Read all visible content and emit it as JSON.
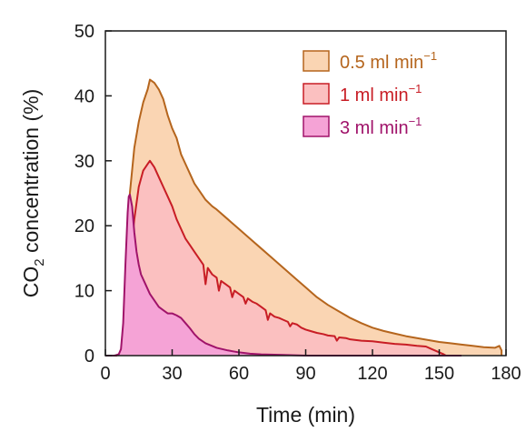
{
  "chart_data": {
    "type": "area",
    "xlabel": "Time (min)",
    "ylabel": {
      "prefix": "CO",
      "subscript": "2",
      "suffix": " concentration (%)"
    },
    "xlim": [
      0,
      180
    ],
    "ylim": [
      0,
      50
    ],
    "xticks": [
      "0",
      "30",
      "60",
      "90",
      "120",
      "150",
      "180"
    ],
    "yticks": [
      "0",
      "10",
      "20",
      "30",
      "40",
      "50"
    ],
    "grid": false,
    "legend_position": "top-right",
    "series": [
      {
        "name": "0.5 ml min",
        "name_superscript": "−1",
        "line_color": "#b5651d",
        "fill_color": "#fad5b3",
        "points": [
          [
            0,
            0
          ],
          [
            5,
            0
          ],
          [
            7,
            0.5
          ],
          [
            9,
            8
          ],
          [
            11,
            25
          ],
          [
            13,
            32
          ],
          [
            15,
            36
          ],
          [
            17,
            39
          ],
          [
            19,
            41
          ],
          [
            20,
            42.5
          ],
          [
            22,
            42
          ],
          [
            24,
            41
          ],
          [
            26,
            39.5
          ],
          [
            28,
            37
          ],
          [
            30,
            35
          ],
          [
            32,
            33.5
          ],
          [
            34,
            31
          ],
          [
            36,
            29.5
          ],
          [
            38,
            28
          ],
          [
            40,
            26.5
          ],
          [
            42,
            25.5
          ],
          [
            45,
            24
          ],
          [
            48,
            23
          ],
          [
            50,
            22.5
          ],
          [
            55,
            21
          ],
          [
            60,
            19.5
          ],
          [
            65,
            18
          ],
          [
            70,
            16.5
          ],
          [
            75,
            15
          ],
          [
            80,
            13.5
          ],
          [
            85,
            12
          ],
          [
            90,
            10.5
          ],
          [
            95,
            9
          ],
          [
            100,
            7.8
          ],
          [
            105,
            6.8
          ],
          [
            110,
            5.8
          ],
          [
            115,
            5
          ],
          [
            120,
            4.3
          ],
          [
            125,
            3.8
          ],
          [
            130,
            3.4
          ],
          [
            135,
            3
          ],
          [
            140,
            2.7
          ],
          [
            145,
            2.4
          ],
          [
            150,
            2.1
          ],
          [
            155,
            1.9
          ],
          [
            160,
            1.7
          ],
          [
            165,
            1.5
          ],
          [
            170,
            1.3
          ],
          [
            175,
            1.2
          ],
          [
            177,
            1.5
          ],
          [
            178,
            0.8
          ],
          [
            178,
            0
          ]
        ]
      },
      {
        "name": "1 ml min",
        "name_superscript": "−1",
        "line_color": "#c81d25",
        "fill_color": "#fbc0c0",
        "points": [
          [
            0,
            0
          ],
          [
            5,
            0
          ],
          [
            7,
            0.3
          ],
          [
            9,
            5
          ],
          [
            11,
            14
          ],
          [
            13,
            21
          ],
          [
            15,
            26
          ],
          [
            17,
            28.5
          ],
          [
            19,
            29.5
          ],
          [
            20,
            30
          ],
          [
            22,
            29
          ],
          [
            24,
            27.5
          ],
          [
            26,
            26
          ],
          [
            28,
            24.5
          ],
          [
            30,
            23
          ],
          [
            32,
            21
          ],
          [
            34,
            19.5
          ],
          [
            36,
            18
          ],
          [
            38,
            17
          ],
          [
            40,
            16
          ],
          [
            42,
            15
          ],
          [
            44,
            14
          ],
          [
            45,
            11
          ],
          [
            46,
            13.5
          ],
          [
            48,
            12.5
          ],
          [
            50,
            12
          ],
          [
            51,
            10
          ],
          [
            52,
            11.5
          ],
          [
            54,
            11
          ],
          [
            56,
            10.5
          ],
          [
            57,
            9
          ],
          [
            58,
            10
          ],
          [
            60,
            9.5
          ],
          [
            62,
            9
          ],
          [
            63,
            8
          ],
          [
            64,
            8.8
          ],
          [
            66,
            8.3
          ],
          [
            68,
            8
          ],
          [
            70,
            7.5
          ],
          [
            72,
            7
          ],
          [
            73,
            5.5
          ],
          [
            74,
            6.5
          ],
          [
            76,
            6
          ],
          [
            78,
            5.8
          ],
          [
            80,
            5.5
          ],
          [
            82,
            5.2
          ],
          [
            83,
            4.5
          ],
          [
            84,
            5
          ],
          [
            86,
            4.8
          ],
          [
            88,
            4.3
          ],
          [
            90,
            4
          ],
          [
            92,
            3.8
          ],
          [
            95,
            3.5
          ],
          [
            98,
            3.3
          ],
          [
            100,
            3.1
          ],
          [
            103,
            3
          ],
          [
            104,
            2.3
          ],
          [
            105,
            2.8
          ],
          [
            108,
            2.7
          ],
          [
            110,
            2.5
          ],
          [
            115,
            2.3
          ],
          [
            120,
            2.2
          ],
          [
            125,
            2
          ],
          [
            130,
            1.8
          ],
          [
            135,
            1.7
          ],
          [
            140,
            1.5
          ],
          [
            144,
            1.4
          ],
          [
            146,
            1.1
          ],
          [
            148,
            0.8
          ],
          [
            150,
            0.5
          ],
          [
            152,
            0.2
          ],
          [
            153,
            0
          ]
        ]
      },
      {
        "name": "3 ml min",
        "name_superscript": "−1",
        "line_color": "#a0136a",
        "fill_color": "#f5a3d6",
        "points": [
          [
            0,
            0
          ],
          [
            4,
            0
          ],
          [
            6,
            0.2
          ],
          [
            7,
            1
          ],
          [
            8,
            5
          ],
          [
            9,
            14
          ],
          [
            10,
            22
          ],
          [
            10.5,
            24.5
          ],
          [
            11,
            24.8
          ],
          [
            12,
            23
          ],
          [
            13,
            19
          ],
          [
            14,
            16
          ],
          [
            15,
            14
          ],
          [
            16,
            12.5
          ],
          [
            18,
            11
          ],
          [
            20,
            9.5
          ],
          [
            22,
            8.5
          ],
          [
            24,
            7.5
          ],
          [
            26,
            7
          ],
          [
            28,
            6.5
          ],
          [
            30,
            6.5
          ],
          [
            32,
            6.2
          ],
          [
            34,
            5.8
          ],
          [
            36,
            5
          ],
          [
            38,
            4.2
          ],
          [
            40,
            3.3
          ],
          [
            42,
            2.6
          ],
          [
            45,
            1.9
          ],
          [
            50,
            1.2
          ],
          [
            55,
            0.8
          ],
          [
            60,
            0.5
          ],
          [
            65,
            0.3
          ],
          [
            70,
            0.2
          ],
          [
            80,
            0.1
          ],
          [
            90,
            0
          ],
          [
            100,
            0
          ],
          [
            120,
            0
          ],
          [
            150,
            0
          ],
          [
            160,
            0
          ]
        ]
      }
    ]
  }
}
